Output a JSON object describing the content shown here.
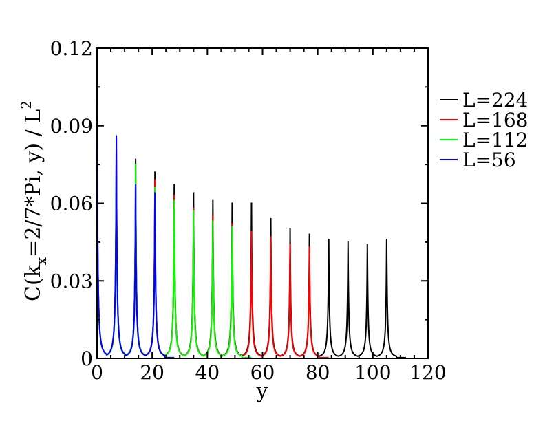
{
  "chart_data": {
    "type": "line",
    "xlabel": "y",
    "ylabel": {
      "prefix": "C(k",
      "subscript": "x",
      "middle": "=2/7*Pi, y) / L",
      "superscript": "2"
    },
    "xlim": [
      0,
      120
    ],
    "ylim": [
      0,
      0.12
    ],
    "x_ticks": [
      0,
      20,
      40,
      60,
      80,
      100,
      120
    ],
    "x_tick_labels": [
      "0",
      "20",
      "40",
      "60",
      "80",
      "100",
      "120"
    ],
    "y_ticks": [
      0,
      0.03,
      0.06,
      0.09,
      0.12
    ],
    "y_tick_labels": [
      "0",
      "0.03",
      "0.06",
      "0.09",
      "0.12"
    ],
    "grid": false,
    "legend_position": "right",
    "peak_period": 7,
    "series": [
      {
        "name": "L=224",
        "color": "#000000",
        "x_max": 112,
        "peak_y": [
          0,
          7,
          14,
          21,
          28,
          35,
          42,
          49,
          56,
          63,
          70,
          77,
          84,
          91,
          98,
          105
        ],
        "peak_values": [
          0.101,
          0.085,
          0.077,
          0.072,
          0.067,
          0.064,
          0.061,
          0.06,
          0.06,
          0.054,
          0.05,
          0.048,
          0.046,
          0.045,
          0.044,
          0.046
        ]
      },
      {
        "name": "L=168",
        "color": "#ff0000",
        "x_max": 84,
        "peak_y": [
          0,
          7,
          14,
          21,
          28,
          35,
          42,
          49,
          56,
          63,
          70,
          77
        ],
        "peak_values": [
          0.1,
          0.08,
          0.074,
          0.069,
          0.063,
          0.058,
          0.055,
          0.052,
          0.049,
          0.047,
          0.044,
          0.043
        ]
      },
      {
        "name": "L=112",
        "color": "#00ff00",
        "x_max": 56,
        "peak_y": [
          0,
          7,
          14,
          21,
          28,
          35,
          42,
          49
        ],
        "peak_values": [
          0.098,
          0.078,
          0.075,
          0.066,
          0.061,
          0.057,
          0.053,
          0.051
        ]
      },
      {
        "name": "L=56",
        "color": "#0000ff",
        "x_max": 28,
        "peak_y": [
          0,
          7,
          14,
          21
        ],
        "peak_values": [
          0.102,
          0.086,
          0.067,
          0.064
        ]
      }
    ]
  }
}
